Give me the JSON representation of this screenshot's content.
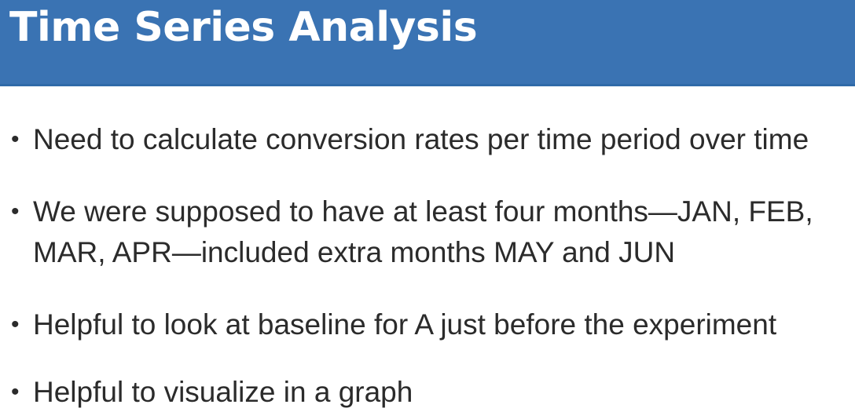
{
  "slide": {
    "title": "Time Series Analysis",
    "bullets": [
      {
        "lines": [
          "Need to calculate conversion rates per time period over time"
        ]
      },
      {
        "lines": [
          "We were supposed to have at least four months—JAN, FEB,",
          "MAR, APR—included extra months MAY and JUN"
        ]
      },
      {
        "lines": [
          "Helpful to look at baseline for A just before the experiment"
        ]
      },
      {
        "lines": [
          "Helpful to visualize in a graph"
        ]
      }
    ],
    "bullet_glyph": "•",
    "colors": {
      "title_bar": "#3a73b3",
      "title_text": "#ffffff",
      "body_text": "#2b2b2b",
      "background": "#ffffff"
    }
  }
}
